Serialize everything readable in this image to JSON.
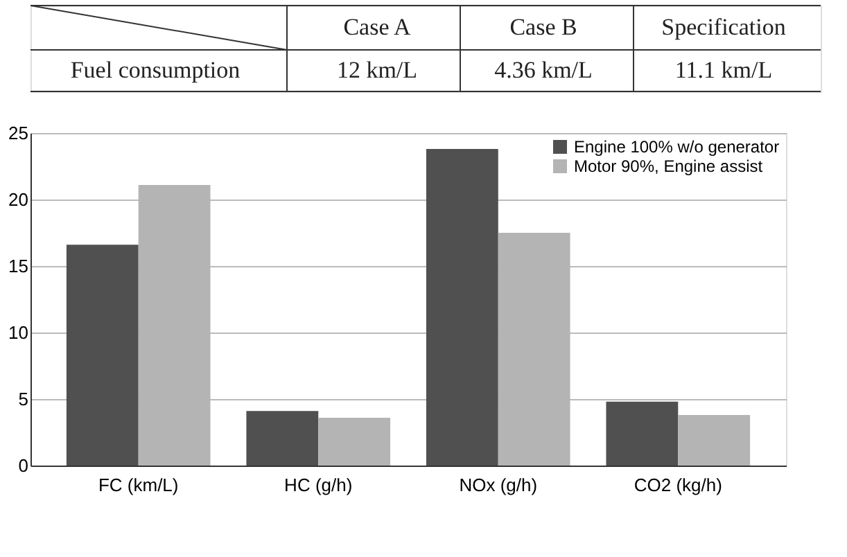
{
  "chart_data": {
    "type": "bar",
    "categories": [
      "FC (km/L)",
      "HC (g/h)",
      "NOx (g/h)",
      "CO2 (kg/h)"
    ],
    "series": [
      {
        "name": "Engine 100% w/o generator",
        "color": "#505050",
        "values": [
          16.6,
          4.1,
          23.8,
          4.8
        ]
      },
      {
        "name": "Motor 90%, Engine assist",
        "color": "#b4b4b4",
        "values": [
          21.1,
          3.6,
          17.5,
          3.8
        ]
      }
    ],
    "ylim": [
      0,
      25
    ],
    "yticks": [
      0,
      5,
      10,
      15,
      20,
      25
    ],
    "grid": "y",
    "legend": "top right",
    "annotations": [
      "Case A",
      "Case B",
      "Specification",
      "Fuel consumption",
      "12 km/L",
      "4.36 km/L",
      "11.1 km/L"
    ]
  }
}
